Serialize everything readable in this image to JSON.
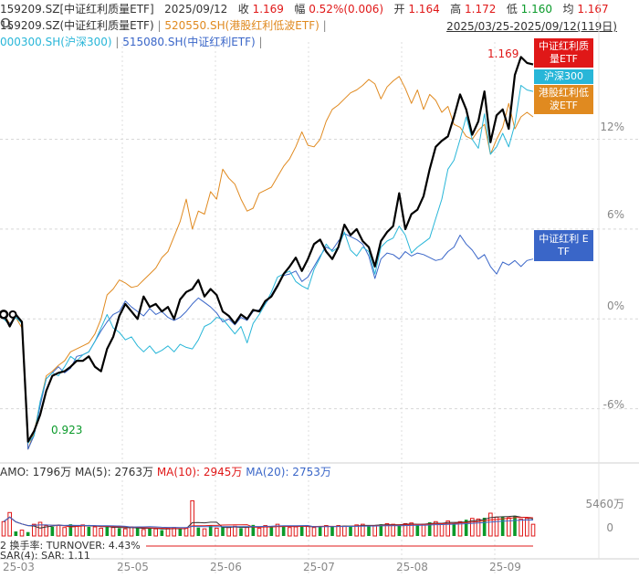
{
  "header": {
    "code": "159209.SZ[中证红利质量ETF]",
    "date": "2025/09/12",
    "close_label": "收",
    "close_value": "1.169",
    "change_label": "幅",
    "change_value": "0.52%(0.006)",
    "open_label": "开",
    "open_value": "1.164",
    "high_label": "高",
    "high_value": "1.172",
    "low_label": "低",
    "low_value": "1.160",
    "avg_label": "均",
    "avg_value": "1.167"
  },
  "legend": {
    "line2_main": "159209.SZ(中证红利质量ETF)",
    "sep": "|",
    "hk": "520550.SH(港股红利低波ETF)",
    "hs300": "000300.SH(沪深300)",
    "div": "515080.SH(中证红利ETF)"
  },
  "range": "2025/03/25-2025/09/12(119日)",
  "tags": {
    "main_value": "1.169",
    "main": "中证红利质量ETF",
    "hs300": "沪深300",
    "hk": "港股红利低波ETF",
    "div": "中证红利 E TF",
    "low_value": "0.923"
  },
  "y_axis": [
    "12%",
    "6%",
    "0%",
    "-6%"
  ],
  "x_axis": [
    "25-03",
    "25-05",
    "25-06",
    "25-07",
    "25-08",
    "25-09"
  ],
  "amo": {
    "label": "AMO: 1796万",
    "ma5": "MA(5): 2763万",
    "ma10": "MA(10): 2945万",
    "ma20": "MA(20): 2753万",
    "y_top": "5460万",
    "y_zero": "0"
  },
  "sub2": "2 换手率: TURNOVER: 4.43%",
  "sub3": "SAR(4): SAR: 1.11",
  "colors": {
    "main": "#000000",
    "hk": "#e08a20",
    "hs300": "#28b6d8",
    "div": "#3a66c8",
    "up": "#e01818",
    "down": "#0a9a2a"
  },
  "chart_data": {
    "type": "line",
    "series": [
      {
        "name": "159209.SZ(中证红利质量ETF)",
        "values": [
          0.3,
          -0.5,
          0.3,
          -0.2,
          -8.2,
          -7.5,
          -6.4,
          -4.8,
          -3.8,
          -3.6,
          -3.5,
          -3.2,
          -2.8,
          -2.8,
          -2.5,
          -3.2,
          -3.5,
          -2.0,
          -1.2,
          0.2,
          1.0,
          0.5,
          0.0,
          1.5,
          0.8,
          1.0,
          0.5,
          0.8,
          0.0,
          1.3,
          1.8,
          2.0,
          2.6,
          1.5,
          2.0,
          1.6,
          0.5,
          0.2,
          -0.3,
          0.3,
          0.0,
          0.6,
          0.5,
          1.2,
          1.5,
          2.2,
          3.0,
          3.5,
          4.1,
          3.2,
          4.0,
          5.0,
          5.3,
          4.5,
          4.0,
          4.8,
          6.3,
          5.6,
          6.0,
          5.2,
          4.8,
          3.5,
          5.2,
          5.8,
          6.2,
          8.4,
          6.0,
          7.0,
          7.3,
          8.2,
          10.0,
          11.5,
          11.9,
          12.2,
          13.5,
          15.0,
          14.0,
          12.3,
          13.2,
          15.2,
          11.8,
          13.6,
          14.0,
          12.7,
          16.3,
          17.5,
          17.1,
          17.0
        ]
      },
      {
        "name": "520550.SH(港股红利低波ETF)",
        "values": [
          0.3,
          -0.3,
          0.1,
          -0.6,
          -8.7,
          -7.6,
          -5.6,
          -3.8,
          -3.5,
          -3.1,
          -2.8,
          -2.2,
          -2.0,
          -1.8,
          -1.6,
          -1.0,
          0.0,
          1.6,
          2.0,
          2.6,
          2.4,
          2.1,
          2.2,
          2.6,
          3.0,
          3.4,
          4.1,
          4.5,
          5.5,
          6.5,
          8.0,
          6.0,
          7.2,
          7.0,
          8.5,
          8.0,
          10.0,
          9.4,
          9.0,
          8.0,
          7.2,
          7.4,
          8.4,
          8.6,
          8.8,
          9.5,
          10.2,
          10.7,
          11.5,
          12.5,
          11.6,
          11.5,
          12.0,
          13.2,
          14.0,
          14.3,
          14.7,
          15.1,
          15.3,
          15.6,
          16.0,
          15.7,
          14.7,
          15.5,
          15.9,
          16.2,
          15.4,
          14.4,
          15.3,
          14.0,
          15.0,
          14.6,
          13.8,
          14.2,
          13.0,
          12.8,
          12.2,
          12.0,
          12.6,
          13.0,
          11.0,
          12.0,
          12.8,
          14.4,
          12.7,
          13.5,
          13.8,
          13.5
        ]
      },
      {
        "name": "000300.SH(沪深300)",
        "values": [
          0.0,
          -0.4,
          0.1,
          -0.3,
          -8.3,
          -7.8,
          -5.5,
          -4.0,
          -3.6,
          -3.8,
          -3.2,
          -2.5,
          -2.8,
          -2.4,
          -2.2,
          -1.5,
          -0.6,
          0.3,
          -0.6,
          -0.9,
          -1.4,
          -1.2,
          -1.8,
          -2.2,
          -1.8,
          -2.3,
          -2.1,
          -1.8,
          -2.2,
          -1.7,
          -1.9,
          -2.0,
          -1.4,
          -0.5,
          -0.3,
          0.1,
          0.0,
          -0.5,
          -1.0,
          -0.5,
          -1.6,
          -0.3,
          0.3,
          1.0,
          1.8,
          2.8,
          3.0,
          3.2,
          2.5,
          2.2,
          2.0,
          3.3,
          4.1,
          5.0,
          4.5,
          4.8,
          5.8,
          4.6,
          4.2,
          4.8,
          4.5,
          3.0,
          4.8,
          5.2,
          5.4,
          6.2,
          5.6,
          4.4,
          4.8,
          5.1,
          5.4,
          6.7,
          8.0,
          10.0,
          10.6,
          12.0,
          13.5,
          12.0,
          11.4,
          13.7,
          11.0,
          11.5,
          12.4,
          11.5,
          13.0,
          15.6,
          15.3,
          15.2
        ]
      },
      {
        "name": "515080.SH(中证红利ETF)",
        "values": [
          0.0,
          -0.3,
          0.1,
          -0.2,
          -8.7,
          -7.8,
          -5.8,
          -4.0,
          -3.6,
          -3.2,
          -3.6,
          -3.3,
          -2.5,
          -2.4,
          -2.2,
          -1.5,
          -0.8,
          -0.2,
          0.3,
          0.5,
          1.2,
          0.8,
          0.5,
          0.2,
          0.7,
          0.3,
          0.5,
          0.1,
          -0.1,
          0.1,
          0.5,
          1.0,
          1.4,
          1.1,
          0.8,
          0.4,
          -0.2,
          0.0,
          -0.4,
          0.1,
          -0.1,
          0.5,
          0.6,
          1.0,
          1.6,
          2.3,
          2.9,
          3.0,
          3.2,
          2.5,
          2.8,
          3.5,
          4.2,
          4.8,
          4.6,
          5.2,
          5.7,
          5.5,
          5.3,
          5.0,
          4.2,
          2.7,
          4.0,
          4.4,
          4.3,
          4.0,
          4.5,
          4.2,
          4.4,
          4.3,
          4.1,
          3.9,
          4.0,
          4.5,
          4.8,
          5.6,
          5.0,
          4.6,
          4.0,
          4.3,
          3.5,
          3.0,
          3.8,
          3.6,
          3.9,
          3.5,
          3.9,
          4.0
        ]
      }
    ],
    "ylabel": "",
    "y_ticks": [
      "12%",
      "6%",
      "0%",
      "-6%"
    ],
    "x_ticks": [
      "25-03",
      "25-05",
      "25-06",
      "25-07",
      "25-08",
      "25-09"
    ],
    "ylim": [
      -9.5,
      18.5
    ],
    "grid": false,
    "volume": [
      2200,
      3600,
      700,
      900,
      600,
      1800,
      2100,
      1600,
      1400,
      1600,
      1300,
      1800,
      1500,
      1700,
      1400,
      1400,
      1200,
      1500,
      1300,
      1200,
      1100,
      1400,
      1200,
      1000,
      1200,
      1100,
      900,
      1200,
      1300,
      1100,
      1200,
      5400,
      1300,
      1100,
      1600,
      1200,
      1400,
      1300,
      1500,
      1200,
      1300,
      1700,
      1200,
      1600,
      1400,
      1800,
      1500,
      1300,
      1400,
      1600,
      1500,
      1300,
      1500,
      1600,
      1400,
      1600,
      1500,
      1500,
      1700,
      1800,
      1600,
      1600,
      1800,
      1900,
      1800,
      1600,
      1900,
      2000,
      1700,
      1800,
      2100,
      2200,
      1900,
      2300,
      1900,
      2200,
      2500,
      2700,
      2600,
      2800,
      3500,
      2900,
      3000,
      2800,
      3100,
      2600,
      2700,
      1800
    ],
    "volume_up": [
      true,
      true,
      false,
      true,
      false,
      true,
      true,
      true,
      false,
      true,
      true,
      false,
      true,
      true,
      false,
      true,
      true,
      false,
      true,
      false,
      true,
      true,
      false,
      true,
      false,
      true,
      false,
      true,
      true,
      false,
      true,
      true,
      false,
      true,
      false,
      true,
      false,
      true,
      true,
      false,
      true,
      false,
      true,
      true,
      false,
      true,
      false,
      true,
      true,
      false,
      true,
      true,
      false,
      true,
      false,
      true,
      true,
      false,
      true,
      true,
      false,
      true,
      false,
      true,
      true,
      false,
      true,
      true,
      false,
      true,
      false,
      true,
      true,
      true,
      false,
      true,
      false,
      true,
      true,
      false,
      true,
      true,
      false,
      true,
      false,
      true,
      true,
      true
    ]
  }
}
